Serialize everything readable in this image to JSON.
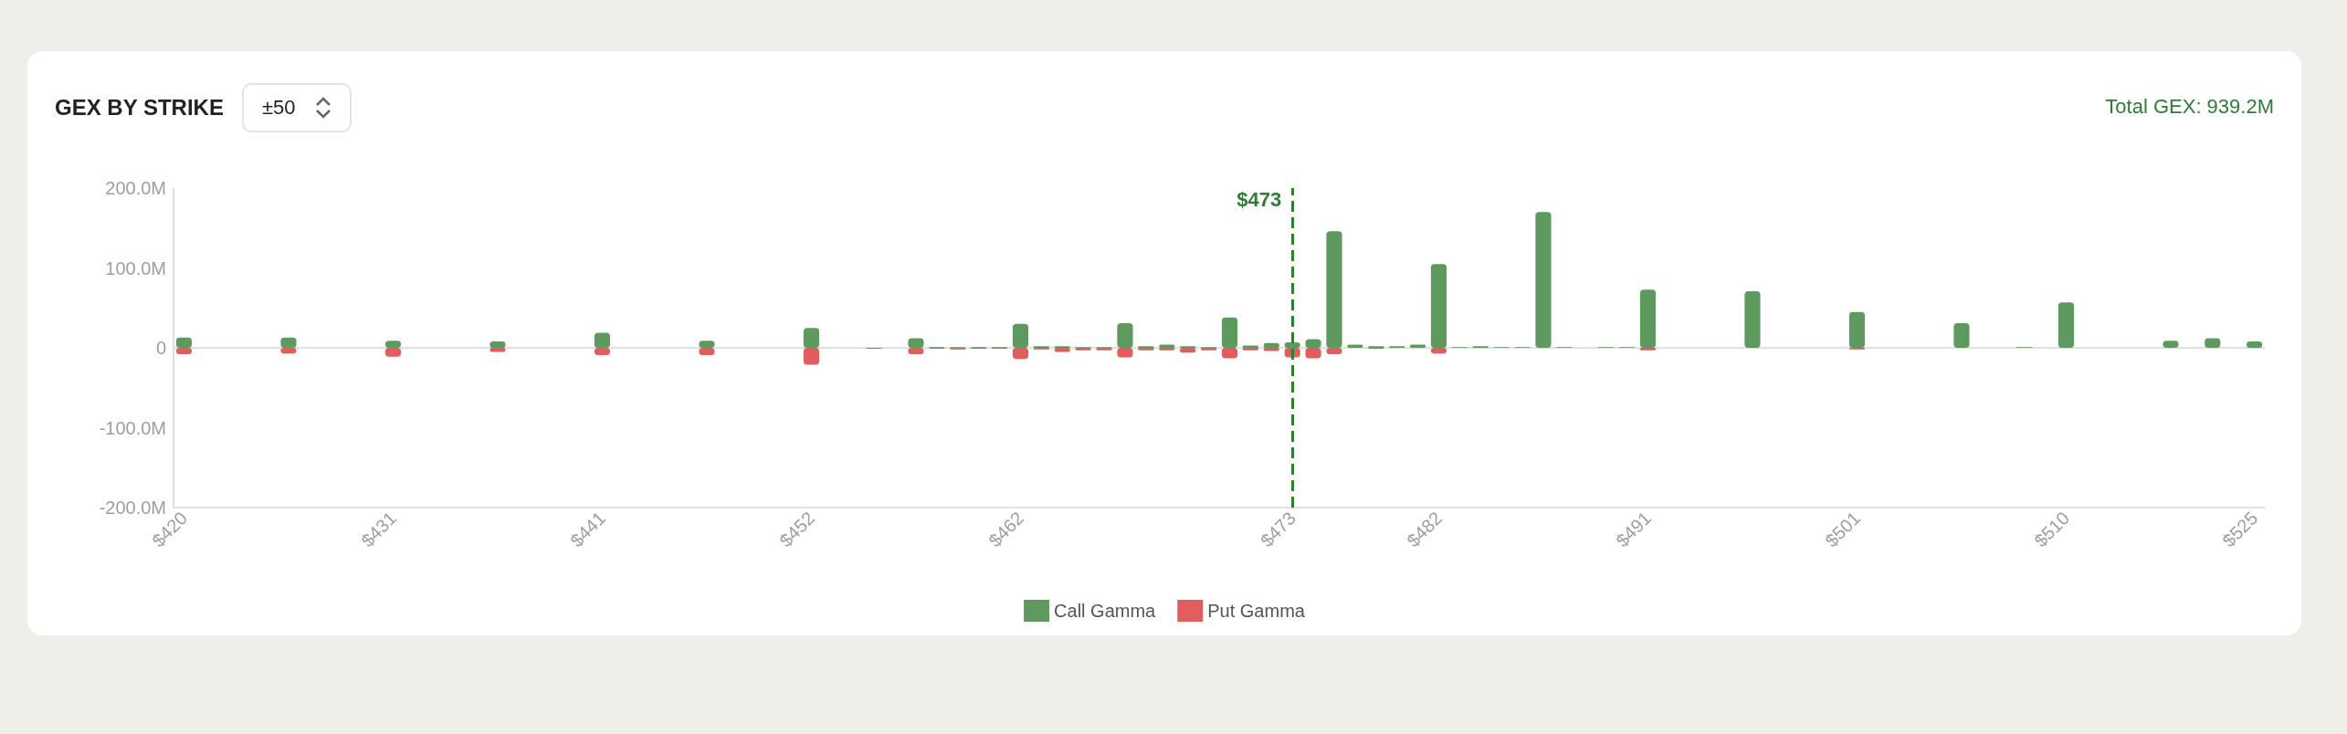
{
  "chart_data": {
    "type": "bar",
    "title": "GEX BY STRIKE",
    "subtitle": "Total GEX: 939.2M",
    "annotations": [
      "±50"
    ],
    "categories": [
      "$420",
      null,
      null,
      null,
      null,
      null,
      null,
      null,
      null,
      null,
      "$431",
      null,
      null,
      null,
      null,
      null,
      null,
      null,
      null,
      null,
      "$441",
      null,
      null,
      null,
      null,
      null,
      null,
      null,
      null,
      null,
      "$452",
      null,
      null,
      null,
      null,
      null,
      null,
      null,
      null,
      null,
      "$462",
      null,
      null,
      null,
      null,
      null,
      null,
      null,
      null,
      null,
      null,
      null,
      null,
      "$473",
      null,
      null,
      null,
      null,
      null,
      null,
      "$482",
      null,
      null,
      null,
      null,
      null,
      null,
      null,
      null,
      null,
      "$491",
      null,
      null,
      null,
      null,
      null,
      null,
      null,
      null,
      null,
      "$501",
      null,
      null,
      null,
      null,
      null,
      null,
      null,
      null,
      null,
      "$510",
      null,
      null,
      null,
      null,
      null,
      null,
      null,
      null,
      "$525"
    ],
    "stacked": true,
    "series": [
      {
        "name": "Call Gamma",
        "color": "#5e9960",
        "values": [
          13,
          null,
          null,
          null,
          null,
          13,
          null,
          null,
          null,
          null,
          9,
          null,
          null,
          null,
          null,
          8,
          null,
          null,
          null,
          null,
          19,
          null,
          null,
          null,
          null,
          9,
          null,
          null,
          null,
          null,
          25,
          null,
          null,
          null,
          null,
          12,
          1,
          1,
          1,
          1,
          30,
          2,
          2,
          1,
          1,
          31,
          2,
          4,
          2,
          1,
          38,
          3,
          6,
          7,
          11,
          146,
          4,
          2,
          2,
          4,
          105,
          1,
          2,
          1,
          1,
          170,
          1,
          null,
          1,
          1,
          73,
          null,
          null,
          null,
          null,
          71,
          null,
          null,
          null,
          null,
          45,
          null,
          null,
          null,
          null,
          31,
          null,
          null,
          1,
          null,
          57,
          null,
          null,
          null,
          null,
          9,
          null,
          12,
          null,
          8
        ]
      },
      {
        "name": "Put Gamma",
        "color": "#e15d5d",
        "values": [
          -8,
          null,
          null,
          null,
          null,
          -7,
          null,
          null,
          null,
          null,
          -11,
          null,
          null,
          null,
          null,
          -5,
          null,
          null,
          null,
          null,
          -9,
          null,
          null,
          null,
          null,
          -9,
          null,
          null,
          null,
          null,
          -21,
          null,
          null,
          -1,
          null,
          -8,
          -1,
          -2,
          -1,
          -1,
          -14,
          -2,
          -5,
          -3,
          -3,
          -12,
          -3,
          -3,
          -6,
          -3,
          -13,
          -3,
          -4,
          -12,
          -13,
          -8,
          null,
          -1,
          null,
          null,
          -7,
          null,
          null,
          null,
          null,
          null,
          null,
          null,
          null,
          null,
          -3,
          null,
          null,
          null,
          null,
          null,
          null,
          null,
          null,
          null,
          -2,
          null,
          null,
          null,
          null,
          null,
          null,
          null,
          null,
          null,
          null,
          null,
          null,
          null,
          null,
          null,
          null,
          null,
          null,
          null
        ]
      }
    ],
    "ylim": [
      -200,
      200
    ],
    "yticks": [
      {
        "value": -200,
        "label": "-200.0M"
      },
      {
        "value": -100,
        "label": "-100.0M"
      },
      0,
      {
        "value": 100,
        "label": "100.0M"
      },
      {
        "value": 200,
        "label": "200.0M"
      }
    ],
    "grid": false,
    "legend": "bottom",
    "ref_lines": [
      {
        "axis": "x",
        "value": "$473",
        "label": "$473",
        "color": "#2e7d32",
        "line_style": "dashed"
      },
      {
        "axis": "y",
        "value": 0,
        "label": null,
        "color": "#e0e0e0",
        "line_style": "solid"
      }
    ]
  }
}
